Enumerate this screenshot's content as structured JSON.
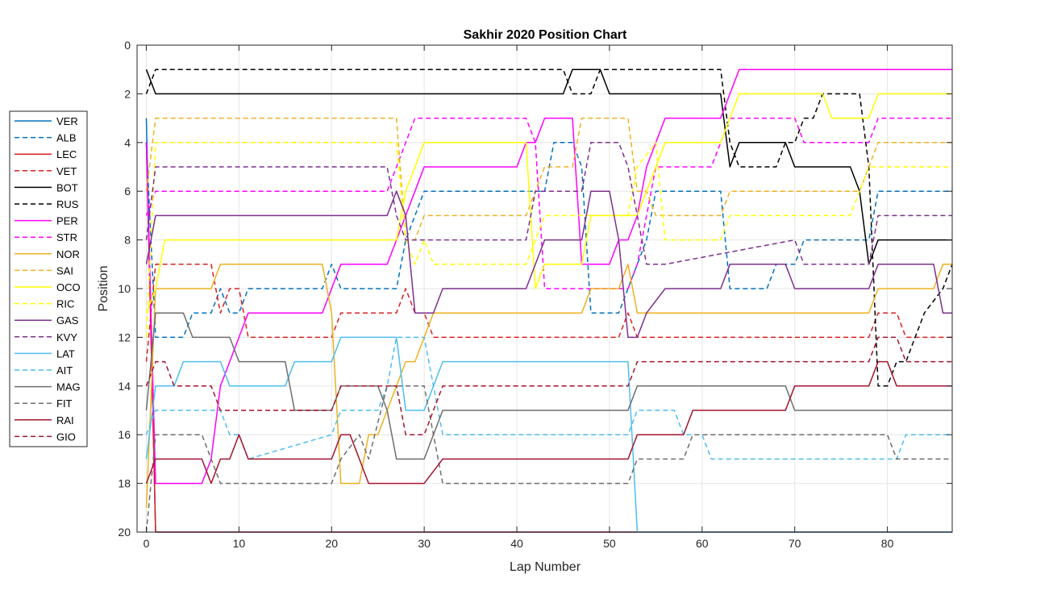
{
  "chart_data": {
    "type": "line",
    "title": "Sakhir 2020 Position Chart",
    "xlabel": "Lap Number",
    "ylabel": "Position",
    "xlim": [
      -1,
      87
    ],
    "ylim": [
      0,
      20
    ],
    "y_reversed": true,
    "x_ticks": [
      0,
      10,
      20,
      30,
      40,
      50,
      60,
      70,
      80
    ],
    "y_ticks": [
      0,
      2,
      4,
      6,
      8,
      10,
      12,
      14,
      16,
      18,
      20
    ],
    "grid": true,
    "legend_position": "outside-left",
    "series": [
      {
        "name": "VER",
        "color": "#0072BD",
        "dash": false,
        "x": [
          0,
          1,
          87
        ],
        "y": [
          3,
          20,
          20
        ]
      },
      {
        "name": "ALB",
        "color": "#0072BD",
        "dash": true,
        "x": [
          0,
          1,
          4,
          5,
          7,
          8,
          9,
          10,
          11,
          19,
          20,
          21,
          27,
          28,
          29,
          30,
          43,
          44,
          46,
          47,
          48,
          51,
          52,
          53,
          54,
          55,
          62,
          63,
          67,
          68,
          70,
          71,
          72,
          78,
          79,
          87
        ],
        "y": [
          4,
          12,
          12,
          11,
          11,
          10,
          11,
          11,
          10,
          10,
          9,
          10,
          10,
          8,
          7,
          6,
          6,
          4,
          4,
          5,
          11,
          11,
          10,
          9,
          8,
          6,
          6,
          10,
          10,
          9,
          9,
          8,
          8,
          8,
          6,
          6
        ]
      },
      {
        "name": "LEC",
        "color": "#D92020",
        "dash": false,
        "x": [
          0,
          1,
          87
        ],
        "y": [
          4,
          20,
          20
        ]
      },
      {
        "name": "VET",
        "color": "#D92020",
        "dash": true,
        "x": [
          0,
          1,
          7,
          8,
          9,
          10,
          11,
          20,
          21,
          27,
          28,
          29,
          30,
          31,
          32,
          51,
          52,
          53,
          78,
          79,
          81,
          82,
          87
        ],
        "y": [
          13,
          9,
          9,
          11,
          10,
          10,
          12,
          12,
          11,
          11,
          10,
          11,
          11,
          12,
          12,
          12,
          11,
          12,
          12,
          11,
          11,
          12,
          12
        ]
      },
      {
        "name": "BOT",
        "color": "#000000",
        "dash": false,
        "x": [
          0,
          1,
          45,
          46,
          49,
          50,
          62,
          63,
          64,
          68,
          69,
          70,
          76,
          77,
          78,
          79,
          87
        ],
        "y": [
          1,
          2,
          2,
          1,
          1,
          2,
          2,
          5,
          4,
          4,
          4,
          5,
          5,
          6,
          9,
          8,
          8
        ]
      },
      {
        "name": "RUS",
        "color": "#000000",
        "dash": true,
        "x": [
          0,
          1,
          45,
          46,
          48,
          49,
          62,
          63,
          64,
          67,
          68,
          69,
          70,
          71,
          72,
          73,
          77,
          78,
          79,
          80,
          81,
          82,
          83,
          84,
          86,
          87
        ],
        "y": [
          2,
          1,
          1,
          2,
          2,
          1,
          1,
          4,
          5,
          5,
          5,
          4,
          4,
          3,
          3,
          2,
          2,
          5,
          14,
          14,
          13,
          13,
          12,
          11,
          10,
          9
        ]
      },
      {
        "name": "PER",
        "color": "#FF00FF",
        "dash": false,
        "x": [
          0,
          1,
          6,
          7,
          8,
          10,
          11,
          19,
          20,
          21,
          26,
          27,
          28,
          29,
          30,
          40,
          41,
          42,
          43,
          46,
          47,
          50,
          51,
          52,
          53,
          54,
          55,
          56,
          62,
          63,
          64,
          87
        ],
        "y": [
          4,
          18,
          18,
          17,
          14,
          12,
          11,
          11,
          10,
          9,
          9,
          8,
          7,
          6,
          5,
          5,
          4,
          4,
          3,
          3,
          9,
          9,
          8,
          8,
          7,
          5,
          4,
          3,
          3,
          2,
          1,
          1
        ]
      },
      {
        "name": "STR",
        "color": "#FF00FF",
        "dash": true,
        "x": [
          0,
          1,
          26,
          27,
          28,
          29,
          41,
          42,
          43,
          45,
          47,
          52,
          53,
          55,
          56,
          61,
          62,
          63,
          66,
          67,
          70,
          71,
          72,
          78,
          79,
          87
        ],
        "y": [
          7,
          6,
          6,
          5,
          4,
          3,
          3,
          4,
          10,
          10,
          10,
          10,
          9,
          5,
          5,
          5,
          4,
          3,
          3,
          3,
          3,
          4,
          4,
          4,
          3,
          3
        ]
      },
      {
        "name": "NOR",
        "color": "#EDB120",
        "dash": false,
        "x": [
          0,
          1,
          7,
          8,
          19,
          20,
          21,
          23,
          24,
          25,
          27,
          28,
          29,
          30,
          31,
          47,
          48,
          51,
          52,
          53,
          78,
          79,
          85,
          86,
          87
        ],
        "y": [
          19,
          10,
          10,
          9,
          9,
          11,
          18,
          18,
          16,
          16,
          14,
          13,
          13,
          12,
          11,
          11,
          10,
          10,
          9,
          11,
          11,
          10,
          10,
          9,
          9
        ]
      },
      {
        "name": "SAI",
        "color": "#EDB120",
        "dash": true,
        "x": [
          0,
          1,
          27,
          28,
          29,
          30,
          41,
          42,
          43,
          46,
          47,
          52,
          53,
          54,
          55,
          62,
          63,
          77,
          78,
          79,
          87
        ],
        "y": [
          6,
          3,
          3,
          8,
          8,
          7,
          7,
          6,
          5,
          5,
          3,
          3,
          6,
          6,
          7,
          7,
          6,
          6,
          5,
          4,
          4
        ]
      },
      {
        "name": "OCO",
        "color": "#FFFF00",
        "dash": false,
        "x": [
          0,
          1,
          2,
          26,
          27,
          28,
          29,
          30,
          41,
          42,
          43,
          47,
          48,
          53,
          54,
          56,
          62,
          64,
          73,
          74,
          78,
          79,
          87
        ],
        "y": [
          11,
          10,
          8,
          8,
          8,
          6,
          5,
          4,
          4,
          10,
          9,
          9,
          7,
          7,
          6,
          4,
          4,
          2,
          2,
          3,
          3,
          2,
          2
        ]
      },
      {
        "name": "RIC",
        "color": "#FFFF00",
        "dash": true,
        "x": [
          0,
          1,
          27,
          28,
          29,
          30,
          31,
          32,
          41,
          42,
          43,
          52,
          53,
          55,
          56,
          62,
          63,
          76,
          77,
          78,
          79,
          87
        ],
        "y": [
          12,
          4,
          4,
          8,
          9,
          8,
          9,
          9,
          9,
          8,
          7,
          7,
          5,
          4,
          8,
          8,
          7,
          7,
          6,
          5,
          5,
          5
        ]
      },
      {
        "name": "GAS",
        "color": "#7E2F8E",
        "dash": false,
        "x": [
          0,
          1,
          26,
          27,
          28,
          29,
          31,
          32,
          41,
          42,
          43,
          47,
          48,
          49,
          50,
          51,
          52,
          53,
          54,
          56,
          62,
          63,
          69,
          70,
          78,
          79,
          85,
          86,
          87
        ],
        "y": [
          9,
          7,
          7,
          6,
          7,
          11,
          11,
          10,
          10,
          9,
          8,
          8,
          6,
          6,
          6,
          8,
          12,
          12,
          11,
          10,
          10,
          9,
          9,
          10,
          10,
          9,
          9,
          11,
          11
        ]
      },
      {
        "name": "KVY",
        "color": "#7E2F8E",
        "dash": true,
        "x": [
          0,
          1,
          26,
          27,
          28,
          29,
          31,
          32,
          41,
          42,
          43,
          47,
          48,
          49,
          51,
          52,
          53,
          54,
          56,
          70,
          71,
          72,
          78,
          79,
          87
        ],
        "y": [
          8,
          5,
          5,
          7,
          8,
          8,
          8,
          8,
          8,
          6,
          6,
          6,
          4,
          4,
          4,
          5,
          7,
          9,
          9,
          8,
          9,
          9,
          9,
          7,
          7
        ]
      },
      {
        "name": "LAT",
        "color": "#4DBEEE",
        "dash": false,
        "x": [
          0,
          1,
          3,
          4,
          8,
          9,
          15,
          16,
          20,
          21,
          27,
          28,
          30,
          31,
          32,
          52,
          53,
          87
        ],
        "y": [
          17,
          14,
          14,
          13,
          13,
          14,
          14,
          13,
          13,
          12,
          12,
          15,
          15,
          14,
          13,
          13,
          20,
          20
        ]
      },
      {
        "name": "AIT",
        "color": "#4DBEEE",
        "dash": true,
        "x": [
          0,
          1,
          8,
          9,
          10,
          11,
          20,
          21,
          25,
          26,
          27,
          28,
          30,
          31,
          32,
          52,
          53,
          57,
          58,
          60,
          61,
          81,
          82,
          87
        ],
        "y": [
          16,
          15,
          15,
          16,
          16,
          17,
          16,
          15,
          15,
          14,
          12,
          12,
          12,
          14,
          16,
          16,
          15,
          15,
          16,
          16,
          17,
          17,
          16,
          16
        ]
      },
      {
        "name": "MAG",
        "color": "#6E6E6E",
        "dash": false,
        "x": [
          0,
          1,
          4,
          5,
          9,
          10,
          15,
          16,
          20,
          21,
          25,
          26,
          27,
          30,
          31,
          32,
          52,
          53,
          69,
          70,
          87
        ],
        "y": [
          15,
          11,
          11,
          12,
          12,
          13,
          13,
          15,
          15,
          14,
          14,
          15,
          17,
          17,
          16,
          15,
          15,
          14,
          14,
          15,
          15
        ]
      },
      {
        "name": "FIT",
        "color": "#6E6E6E",
        "dash": true,
        "x": [
          0,
          1,
          6,
          7,
          8,
          20,
          21,
          23,
          24,
          26,
          27,
          30,
          31,
          32,
          52,
          53,
          58,
          59,
          80,
          81,
          82,
          87
        ],
        "y": [
          20,
          16,
          16,
          17,
          18,
          18,
          17,
          16,
          17,
          14,
          14,
          14,
          16,
          18,
          18,
          17,
          17,
          16,
          16,
          17,
          17,
          17
        ]
      },
      {
        "name": "RAI",
        "color": "#A2142F",
        "dash": false,
        "x": [
          0,
          1,
          6,
          7,
          8,
          9,
          10,
          11,
          20,
          21,
          22,
          24,
          30,
          32,
          52,
          53,
          58,
          59,
          69,
          70,
          78,
          79,
          80,
          81,
          87
        ],
        "y": [
          18,
          17,
          17,
          18,
          17,
          17,
          16,
          17,
          17,
          16,
          16,
          18,
          18,
          17,
          17,
          16,
          16,
          15,
          15,
          14,
          14,
          13,
          13,
          14,
          14
        ]
      },
      {
        "name": "GIO",
        "color": "#A2142F",
        "dash": true,
        "x": [
          0,
          1,
          2,
          3,
          7,
          8,
          20,
          21,
          27,
          28,
          30,
          31,
          32,
          52,
          53,
          78,
          79,
          81,
          82,
          87
        ],
        "y": [
          14,
          13,
          13,
          14,
          14,
          15,
          15,
          14,
          14,
          16,
          16,
          15,
          14,
          14,
          13,
          13,
          12,
          12,
          13,
          13
        ]
      }
    ]
  }
}
